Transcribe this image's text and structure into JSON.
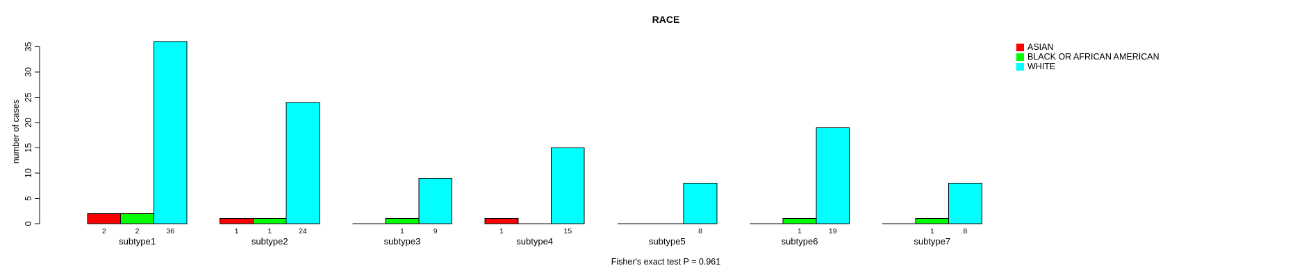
{
  "figure": {
    "title": "RACE",
    "footnote": "Fisher's exact test P = 0.961"
  },
  "chart_data": {
    "type": "bar",
    "title": "RACE",
    "xlabel": "",
    "ylabel": "number of cases",
    "footnote": "Fisher's exact test P = 0.961",
    "categories": [
      "subtype1",
      "subtype2",
      "subtype3",
      "subtype4",
      "subtype5",
      "subtype6",
      "subtype7"
    ],
    "series": [
      {
        "name": "ASIAN",
        "color": "#FF0000",
        "values": [
          2,
          1,
          0,
          1,
          0,
          0,
          0
        ]
      },
      {
        "name": "BLACK OR AFRICAN AMERICAN",
        "color": "#00FF00",
        "values": [
          2,
          1,
          1,
          0,
          0,
          1,
          1
        ]
      },
      {
        "name": "WHITE",
        "color": "#00FFFF",
        "values": [
          36,
          24,
          9,
          15,
          8,
          19,
          8
        ]
      }
    ],
    "ylim": [
      0,
      36
    ],
    "yticks": [
      0,
      5,
      10,
      15,
      20,
      25,
      30,
      35
    ],
    "grid": false,
    "legend_position": "top-right",
    "bar_value_labels": true,
    "zero_bars_drawn_as_baseline": true,
    "axis_color": "#000000",
    "text_color": "#000000",
    "background_color": "#FFFFFF"
  }
}
